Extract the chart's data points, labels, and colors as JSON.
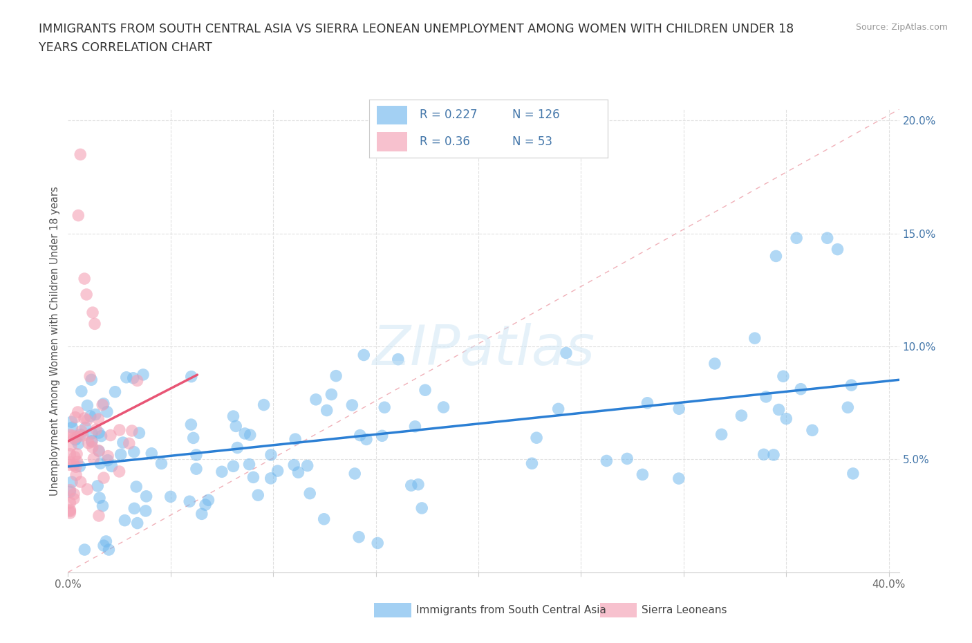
{
  "title_line1": "IMMIGRANTS FROM SOUTH CENTRAL ASIA VS SIERRA LEONEAN UNEMPLOYMENT AMONG WOMEN WITH CHILDREN UNDER 18",
  "title_line2": "YEARS CORRELATION CHART",
  "ylabel": "Unemployment Among Women with Children Under 18 years",
  "source": "Source: ZipAtlas.com",
  "xlim": [
    0.0,
    0.405
  ],
  "ylim": [
    0.0,
    0.205
  ],
  "r_blue": 0.227,
  "n_blue": 126,
  "r_pink": 0.36,
  "n_pink": 53,
  "blue_color": "#72b8ed",
  "pink_color": "#f4a0b5",
  "trend_blue_color": "#2b7fd4",
  "trend_pink_color": "#e85575",
  "diag_color": "#e8b4b8",
  "legend_label_blue": "Immigrants from South Central Asia",
  "legend_label_pink": "Sierra Leoneans",
  "watermark": "ZIPatlas",
  "text_color": "#4477aa",
  "title_color": "#333333",
  "ylabel_color": "#555555",
  "source_color": "#999999",
  "grid_color": "#e0e0e0",
  "tick_label_color": "#666666"
}
